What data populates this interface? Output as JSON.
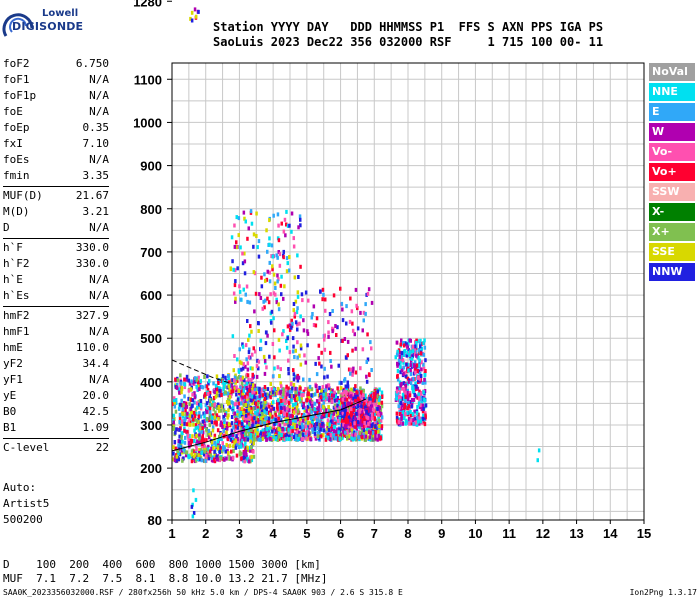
{
  "logo": {
    "line1": "Lowell",
    "line2": "DIGISONDE"
  },
  "header": {
    "line1": "Station YYYY DAY   DDD HHMMSS P1  FFS S AXN PPS IGA PS",
    "line2": "SaoLuis 2023 Dec22 356 032000 RSF     1 715 100 00- 11"
  },
  "params": [
    [
      {
        "name": "foF2",
        "value": "6.750"
      },
      {
        "name": "foF1",
        "value": "N/A"
      },
      {
        "name": "foF1p",
        "value": "N/A"
      },
      {
        "name": "foE",
        "value": "N/A"
      },
      {
        "name": "foEp",
        "value": "0.35"
      },
      {
        "name": "fxI",
        "value": "7.10"
      },
      {
        "name": "foEs",
        "value": "N/A"
      },
      {
        "name": "fmin",
        "value": "3.35"
      }
    ],
    [
      {
        "name": "MUF(D)",
        "value": "21.67"
      },
      {
        "name": "M(D)",
        "value": "3.21"
      },
      {
        "name": "D",
        "value": "N/A"
      }
    ],
    [
      {
        "name": "h`F",
        "value": "330.0"
      },
      {
        "name": "h`F2",
        "value": "330.0"
      },
      {
        "name": "h`E",
        "value": "N/A"
      },
      {
        "name": "h`Es",
        "value": "N/A"
      }
    ],
    [
      {
        "name": "hmF2",
        "value": "327.9"
      },
      {
        "name": "hmF1",
        "value": "N/A"
      },
      {
        "name": "hmE",
        "value": "110.0"
      },
      {
        "name": "yF2",
        "value": "34.4"
      },
      {
        "name": "yF1",
        "value": "N/A"
      },
      {
        "name": "yE",
        "value": "20.0"
      },
      {
        "name": "B0",
        "value": "42.5"
      },
      {
        "name": "B1",
        "value": "1.09"
      }
    ],
    [
      {
        "name": "C-level",
        "value": "22"
      }
    ]
  ],
  "autoscale": {
    "line1": "Auto:",
    "line2": "Artist5",
    "line3": "500200"
  },
  "legend": [
    {
      "label": "NoVal",
      "color": "#a0a0a0"
    },
    {
      "label": "NNE",
      "color": "#00e0f0"
    },
    {
      "label": "E",
      "color": "#30a8f8"
    },
    {
      "label": "W",
      "color": "#b000b0"
    },
    {
      "label": "Vo-",
      "color": "#ff50b0"
    },
    {
      "label": "Vo+",
      "color": "#ff0030"
    },
    {
      "label": "SSW",
      "color": "#f8b0b0"
    },
    {
      "label": "X-",
      "color": "#008000"
    },
    {
      "label": "X+",
      "color": "#80c050"
    },
    {
      "label": "SSE",
      "color": "#d8d800"
    },
    {
      "label": "NNW",
      "color": "#2020e0"
    }
  ],
  "dmuf": {
    "line1": "D    100  200  400  600  800 1000 1500 3000 [km]",
    "line2": "MUF  7.1  7.2  7.5  8.1  8.8 10.0 13.2 21.7 [MHz]"
  },
  "footer": {
    "left": "SAA0K_2023356032000.RSF / 280fx256h 50 kHz 5.0 km / DPS-4 SAA0K 903 / 2.6 S 315.8 E",
    "right": "Ion2Png 1.3.17"
  },
  "chart_data": {
    "type": "scatter",
    "x_ticks": [
      1,
      2,
      3,
      4,
      5,
      6,
      7,
      8,
      9,
      10,
      11,
      12,
      13,
      14,
      15
    ],
    "y_ticks": [
      80,
      200,
      300,
      400,
      500,
      600,
      700,
      800,
      900,
      1000,
      1100,
      1280
    ],
    "xlim": [
      1,
      15
    ],
    "ylim": [
      80,
      1280
    ],
    "grid": true,
    "y_scale": "nonlinear",
    "y_axis_map": [
      [
        80,
        0
      ],
      [
        200,
        0.125
      ],
      [
        300,
        0.229
      ],
      [
        400,
        0.333
      ],
      [
        500,
        0.438
      ],
      [
        600,
        0.542
      ],
      [
        700,
        0.646
      ],
      [
        800,
        0.75
      ],
      [
        900,
        0.854
      ],
      [
        1000,
        0.958
      ],
      [
        1100,
        1.062
      ],
      [
        1280,
        1.25
      ]
    ],
    "clusters": [
      {
        "x": [
          1.0,
          3.4
        ],
        "y": [
          220,
          420
        ],
        "colors": [
          2,
          3,
          10,
          5,
          4,
          1,
          9,
          8
        ],
        "density": 900
      },
      {
        "x": [
          3.0,
          7.2
        ],
        "y": [
          270,
          390
        ],
        "colors": [
          3,
          10,
          5,
          4,
          2,
          1,
          9,
          8
        ],
        "density": 1600
      },
      {
        "x": [
          2.7,
          4.8
        ],
        "y": [
          380,
          800
        ],
        "colors": [
          3,
          10,
          5,
          4,
          2,
          1,
          9
        ],
        "density": 300
      },
      {
        "x": [
          4.5,
          6.9
        ],
        "y": [
          390,
          620
        ],
        "colors": [
          3,
          10,
          5,
          4,
          2
        ],
        "density": 140
      },
      {
        "x": [
          7.6,
          8.5
        ],
        "y": [
          305,
          500
        ],
        "colors": [
          5,
          3,
          4,
          1,
          10,
          2
        ],
        "density": 420
      },
      {
        "x": [
          6.0,
          7.0
        ],
        "y": [
          300,
          380
        ],
        "colors": [
          5,
          3,
          10,
          4
        ],
        "density": 250
      },
      {
        "x": [
          1.5,
          1.75
        ],
        "y": [
          1240,
          1280
        ],
        "colors": [
          3,
          5,
          9,
          10
        ],
        "density": 8
      },
      {
        "x": [
          1.5,
          1.75
        ],
        "y": [
          80,
          175
        ],
        "colors": [
          3,
          10,
          1
        ],
        "density": 6
      },
      {
        "x": [
          11.8,
          11.9
        ],
        "y": [
          190,
          365
        ],
        "colors": [
          1,
          2
        ],
        "density": 2
      }
    ],
    "curves": [
      {
        "name": "profile",
        "style": "solid",
        "x": [
          1.0,
          2.0,
          3.0,
          4.0,
          5.0,
          6.0,
          6.75
        ],
        "y": [
          240,
          260,
          285,
          305,
          320,
          335,
          360
        ]
      },
      {
        "name": "extension",
        "style": "dashed",
        "x": [
          1.0,
          1.6,
          2.2,
          2.8
        ],
        "y": [
          450,
          430,
          410,
          395
        ]
      }
    ]
  }
}
